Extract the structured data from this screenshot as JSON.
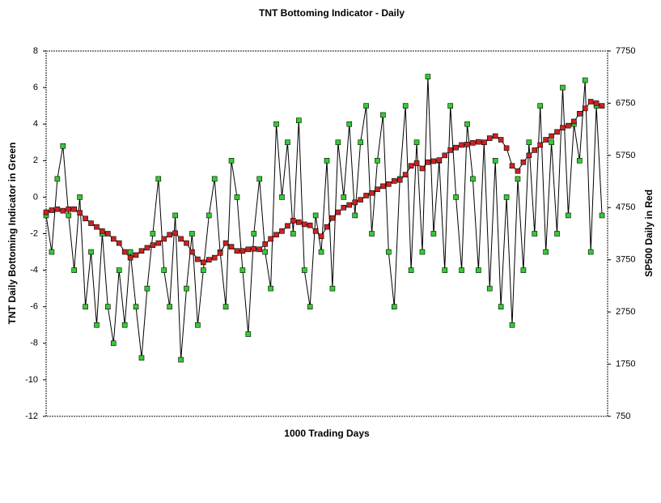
{
  "chart_data": {
    "type": "line",
    "title": "TNT Bottoming Indicator - Daily",
    "xlabel": "1000 Trading Days",
    "ylabel": "TNT Daily Bottoming Indicator in Green",
    "y2label": "SP500 Daily in Red",
    "x": [
      0,
      10,
      20,
      30,
      40,
      50,
      60,
      70,
      80,
      90,
      100,
      110,
      120,
      130,
      140,
      150,
      160,
      170,
      180,
      190,
      200,
      210,
      220,
      230,
      240,
      250,
      260,
      270,
      280,
      290,
      300,
      310,
      320,
      330,
      340,
      350,
      360,
      370,
      380,
      390,
      400,
      410,
      420,
      430,
      440,
      450,
      460,
      470,
      480,
      490,
      500,
      510,
      520,
      530,
      540,
      550,
      560,
      570,
      580,
      590,
      600,
      610,
      620,
      630,
      640,
      650,
      660,
      670,
      680,
      690,
      700,
      710,
      720,
      730,
      740,
      750,
      760,
      770,
      780,
      790,
      800,
      810,
      820,
      830,
      840,
      850,
      860,
      870,
      880,
      890,
      900,
      910,
      920,
      930,
      940,
      950,
      960,
      970,
      980,
      990
    ],
    "xlim": [
      0,
      1000
    ],
    "ylim": [
      -12,
      8
    ],
    "yticks": [
      -12,
      -10,
      -8,
      -6,
      -4,
      -2,
      0,
      2,
      4,
      6,
      8
    ],
    "y2lim": [
      750,
      7750
    ],
    "y2ticks": [
      750,
      1750,
      2750,
      3750,
      4750,
      5750,
      6750,
      7750
    ],
    "series": [
      {
        "name": "TNT Daily Bottoming Indicator",
        "color": "#33cc33",
        "values": [
          -1,
          -3,
          1,
          2.8,
          -1,
          -4,
          0,
          -6,
          -3,
          -7,
          -2,
          -6,
          -8,
          -4,
          -7,
          -3,
          -6,
          -8.8,
          -5,
          -2,
          1,
          -4,
          -6,
          -1,
          -8.9,
          -5,
          -2,
          -7,
          -4,
          -1,
          1,
          -3,
          -6,
          2,
          0,
          -4,
          -7.5,
          -2,
          1,
          -3,
          -5,
          4,
          0,
          3,
          -2,
          4.2,
          -4,
          -6,
          -1,
          -3,
          2,
          -5,
          3,
          0,
          4,
          -1,
          3,
          5,
          -2,
          2,
          4.5,
          -3,
          -6,
          1,
          5,
          -4,
          3,
          -3,
          6.6,
          -2,
          2,
          -4,
          5,
          0,
          -4,
          4,
          1,
          -4,
          3,
          -5,
          2,
          -6,
          0,
          -7,
          1,
          -4,
          3,
          -2,
          5,
          -3,
          3,
          -2,
          6,
          -1,
          4,
          2,
          6.4,
          -3,
          5,
          -1
        ]
      },
      {
        "name": "SP500 Daily",
        "color": "#cc2222",
        "axis": "y2",
        "values": [
          4660,
          4700,
          4720,
          4690,
          4720,
          4720,
          4650,
          4540,
          4450,
          4380,
          4300,
          4250,
          4150,
          4070,
          3900,
          3790,
          3840,
          3920,
          3980,
          4030,
          4070,
          4150,
          4230,
          4260,
          4150,
          4070,
          3900,
          3760,
          3700,
          3750,
          3790,
          3880,
          4070,
          4000,
          3920,
          3920,
          3950,
          3960,
          3950,
          4050,
          4150,
          4230,
          4300,
          4400,
          4500,
          4470,
          4430,
          4410,
          4300,
          4200,
          4380,
          4550,
          4660,
          4750,
          4800,
          4850,
          4900,
          4980,
          5030,
          5100,
          5160,
          5200,
          5260,
          5280,
          5380,
          5550,
          5600,
          5500,
          5620,
          5640,
          5660,
          5750,
          5850,
          5900,
          5950,
          5960,
          5990,
          6010,
          6000,
          6080,
          6120,
          6050,
          5890,
          5550,
          5450,
          5620,
          5750,
          5850,
          5950,
          6050,
          6120,
          6200,
          6280,
          6320,
          6400,
          6550,
          6650,
          6780,
          6750,
          6700
        ]
      }
    ]
  }
}
